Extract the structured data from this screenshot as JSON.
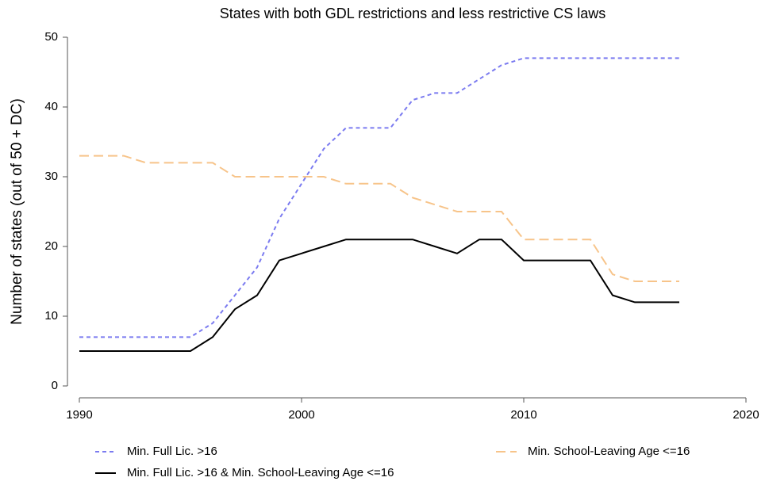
{
  "chart_data": {
    "type": "line",
    "title": "States with both GDL restrictions and less restrictive CS laws",
    "y_label": "Number of states (out of 50 + DC)",
    "x": [
      1990,
      1991,
      1992,
      1993,
      1994,
      1995,
      1996,
      1997,
      1998,
      1999,
      2000,
      2001,
      2002,
      2003,
      2004,
      2005,
      2006,
      2007,
      2008,
      2009,
      2010,
      2011,
      2012,
      2013,
      2014,
      2015,
      2016,
      2017
    ],
    "series": [
      {
        "name": "Min. Full Lic. >16",
        "color": "#7b7bf0",
        "linestyle": "dotted",
        "values": [
          7,
          7,
          7,
          7,
          7,
          7,
          9,
          13,
          17,
          24,
          29,
          34,
          37,
          37,
          37,
          41,
          42,
          42,
          44,
          46,
          47,
          47,
          47,
          47,
          47,
          47,
          47,
          47
        ]
      },
      {
        "name": "Min. School-Leaving Age <=16",
        "color": "#f7c48a",
        "linestyle": "dashed",
        "values": [
          33,
          33,
          33,
          32,
          32,
          32,
          32,
          30,
          30,
          30,
          30,
          30,
          29,
          29,
          29,
          27,
          26,
          25,
          25,
          25,
          21,
          21,
          21,
          21,
          16,
          15,
          15,
          15
        ]
      },
      {
        "name": "Min. Full Lic. >16 & Min. School-Leaving Age <=16",
        "color": "#000000",
        "linestyle": "solid",
        "values": [
          5,
          5,
          5,
          5,
          5,
          5,
          7,
          11,
          13,
          18,
          19,
          20,
          21,
          21,
          21,
          21,
          20,
          19,
          21,
          21,
          18,
          18,
          18,
          18,
          13,
          12,
          12,
          12
        ]
      }
    ],
    "xlim": [
      1990,
      2020
    ],
    "xticks": [
      1990,
      2000,
      2010,
      2020
    ],
    "ylim": [
      0,
      50
    ],
    "yticks": [
      0,
      10,
      20,
      30,
      40,
      50
    ],
    "grid": false
  }
}
